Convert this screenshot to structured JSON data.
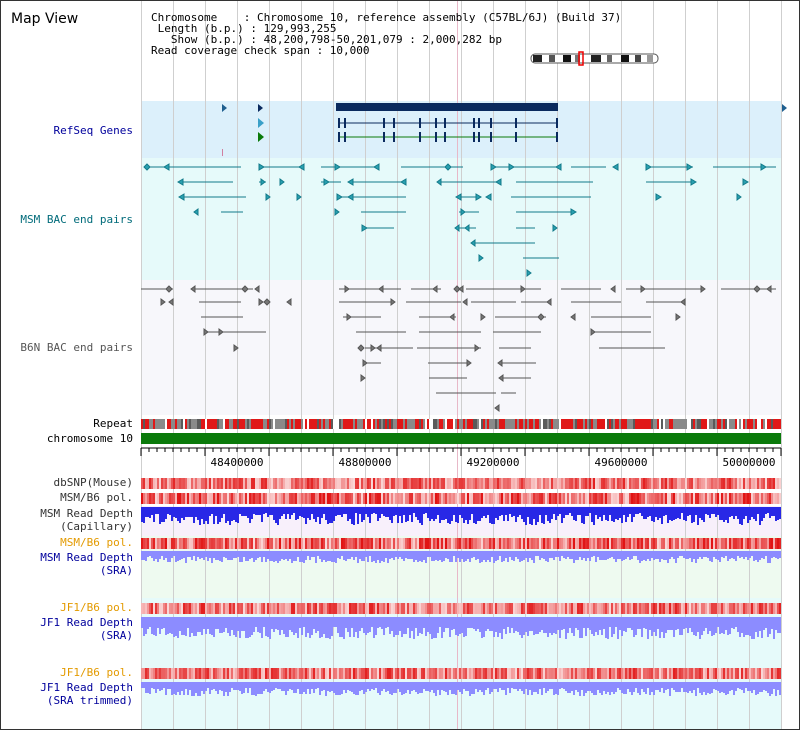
{
  "title": "Map View",
  "info": {
    "chromosome_key": "Chromosome",
    "chromosome_val": ": Chromosome 10, reference assembly (C57BL/6J) (Build 37)",
    "length_key": "Length (b.p.)",
    "length_val": ": 129,993,255",
    "show_key": "Show (b.p.)",
    "show_val": ": 48,200,798-50,201,079 : 2,000,282 bp",
    "coverage": "Read coverage check span : 10,000"
  },
  "tracks": {
    "refseq": "RefSeq Genes",
    "msm_bac": "MSM BAC end pairs",
    "b6n_bac": "B6N BAC end pairs",
    "repeat": "Repeat",
    "chromosome": "chromosome 10",
    "dbsnp": "dbSNP(Mouse)",
    "msm_b6_pol": "MSM/B6 pol.",
    "msm_depth_cap_1": "MSM Read Depth",
    "msm_depth_cap_2": "(Capillary)",
    "msm_b6_pol2": "MSM/B6 pol.",
    "msm_depth_sra_1": "MSM Read Depth",
    "msm_depth_sra_2": "(SRA)",
    "jf1_b6_pol": "JF1/B6 pol.",
    "jf1_depth_sra_1": "JF1 Read Depth",
    "jf1_depth_sra_2": "(SRA)",
    "jf1_b6_pol2": "JF1/B6 pol.",
    "jf1_depth_trim_1": "JF1 Read Depth",
    "jf1_depth_trim_2": "(SRA trimmed)"
  },
  "axis_ticks": [
    "48400000",
    "48800000",
    "49200000",
    "49600000",
    "50000000"
  ],
  "colors": {
    "refseq_bg": "#dff1fb",
    "msm_bg": "#e8fbfb",
    "b6n_bg": "#f6f6fa",
    "chromosome": "#0a7a0a",
    "label_navy": "#00009c",
    "label_teal": "#006b7a",
    "label_orange": "#e39a00",
    "depth_dark": "#2424e0",
    "depth_light": "#8a8aff"
  }
}
